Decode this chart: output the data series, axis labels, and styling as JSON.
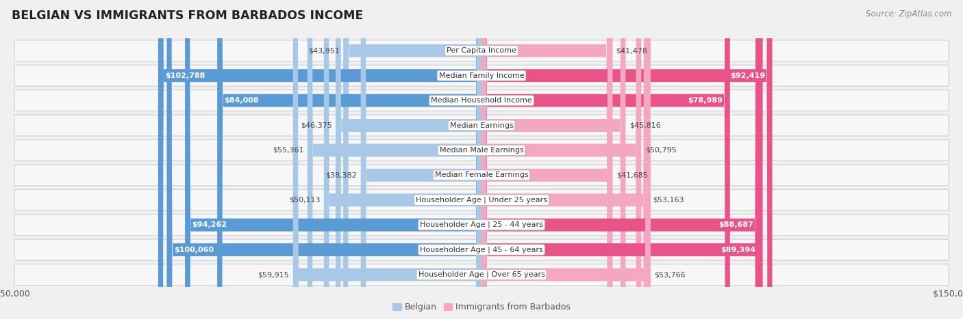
{
  "title": "BELGIAN VS IMMIGRANTS FROM BARBADOS INCOME",
  "source": "Source: ZipAtlas.com",
  "categories": [
    "Per Capita Income",
    "Median Family Income",
    "Median Household Income",
    "Median Earnings",
    "Median Male Earnings",
    "Median Female Earnings",
    "Householder Age | Under 25 years",
    "Householder Age | 25 - 44 years",
    "Householder Age | 45 - 64 years",
    "Householder Age | Over 65 years"
  ],
  "belgian_values": [
    43951,
    102788,
    84008,
    46375,
    55361,
    38382,
    50113,
    94262,
    100060,
    59915
  ],
  "immigrant_values": [
    41478,
    92419,
    78989,
    45816,
    50795,
    41685,
    53163,
    88687,
    89394,
    53766
  ],
  "belgian_labels": [
    "$43,951",
    "$102,788",
    "$84,008",
    "$46,375",
    "$55,361",
    "$38,382",
    "$50,113",
    "$94,262",
    "$100,060",
    "$59,915"
  ],
  "immigrant_labels": [
    "$41,478",
    "$92,419",
    "$78,989",
    "$45,816",
    "$50,795",
    "$41,685",
    "$53,163",
    "$88,687",
    "$89,394",
    "$53,766"
  ],
  "belgian_color_light": "#a8c8e8",
  "belgian_color_dark": "#5b9bd5",
  "immigrant_color_light": "#f4a7c3",
  "immigrant_color_dark": "#e8548a",
  "max_value": 150000,
  "bar_height": 0.52,
  "background_color": "#f0f0f0",
  "row_bg_color": "#f7f7f7",
  "row_border_color": "#d0d0d0",
  "label_dark_threshold": 65000,
  "legend_label_belgian": "Belgian",
  "legend_label_immigrant": "Immigrants from Barbados"
}
